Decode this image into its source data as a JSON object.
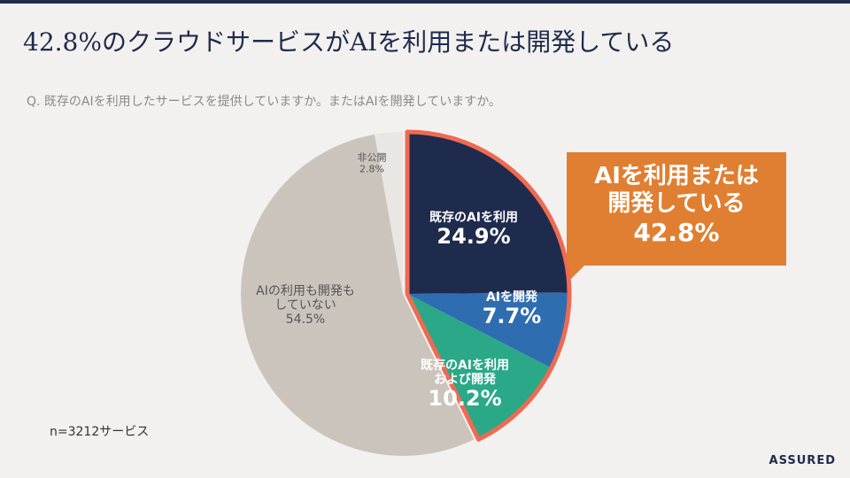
{
  "chart_data": {
    "type": "pie",
    "title": "42.8%のクラウドサービスがAIを利用または開発している",
    "subtitle": "Q. 既存のAIを利用したサービスを提供していますか。またはAIを開発していますか。",
    "categories": [
      "既存のAIを利用",
      "AIを開発",
      "既存のAIを利用\nおよび開発",
      "AIの利用も開発も\nしていない",
      "非公開"
    ],
    "values": [
      24.9,
      7.7,
      10.2,
      54.5,
      2.8
    ],
    "value_labels": [
      "24.9%",
      "7.7%",
      "10.2%",
      "54.5%",
      "2.8%"
    ],
    "colors": [
      "#1f2b4d",
      "#2f6db1",
      "#2aa888",
      "#cbc4bd",
      "#e9e6e3"
    ],
    "callout": {
      "text": "AIを利用または\n開発している",
      "value": 42.8,
      "value_label": "42.8%",
      "color": "#e07f31"
    },
    "note": "n=3212サービス",
    "logo": "ASSURED"
  }
}
